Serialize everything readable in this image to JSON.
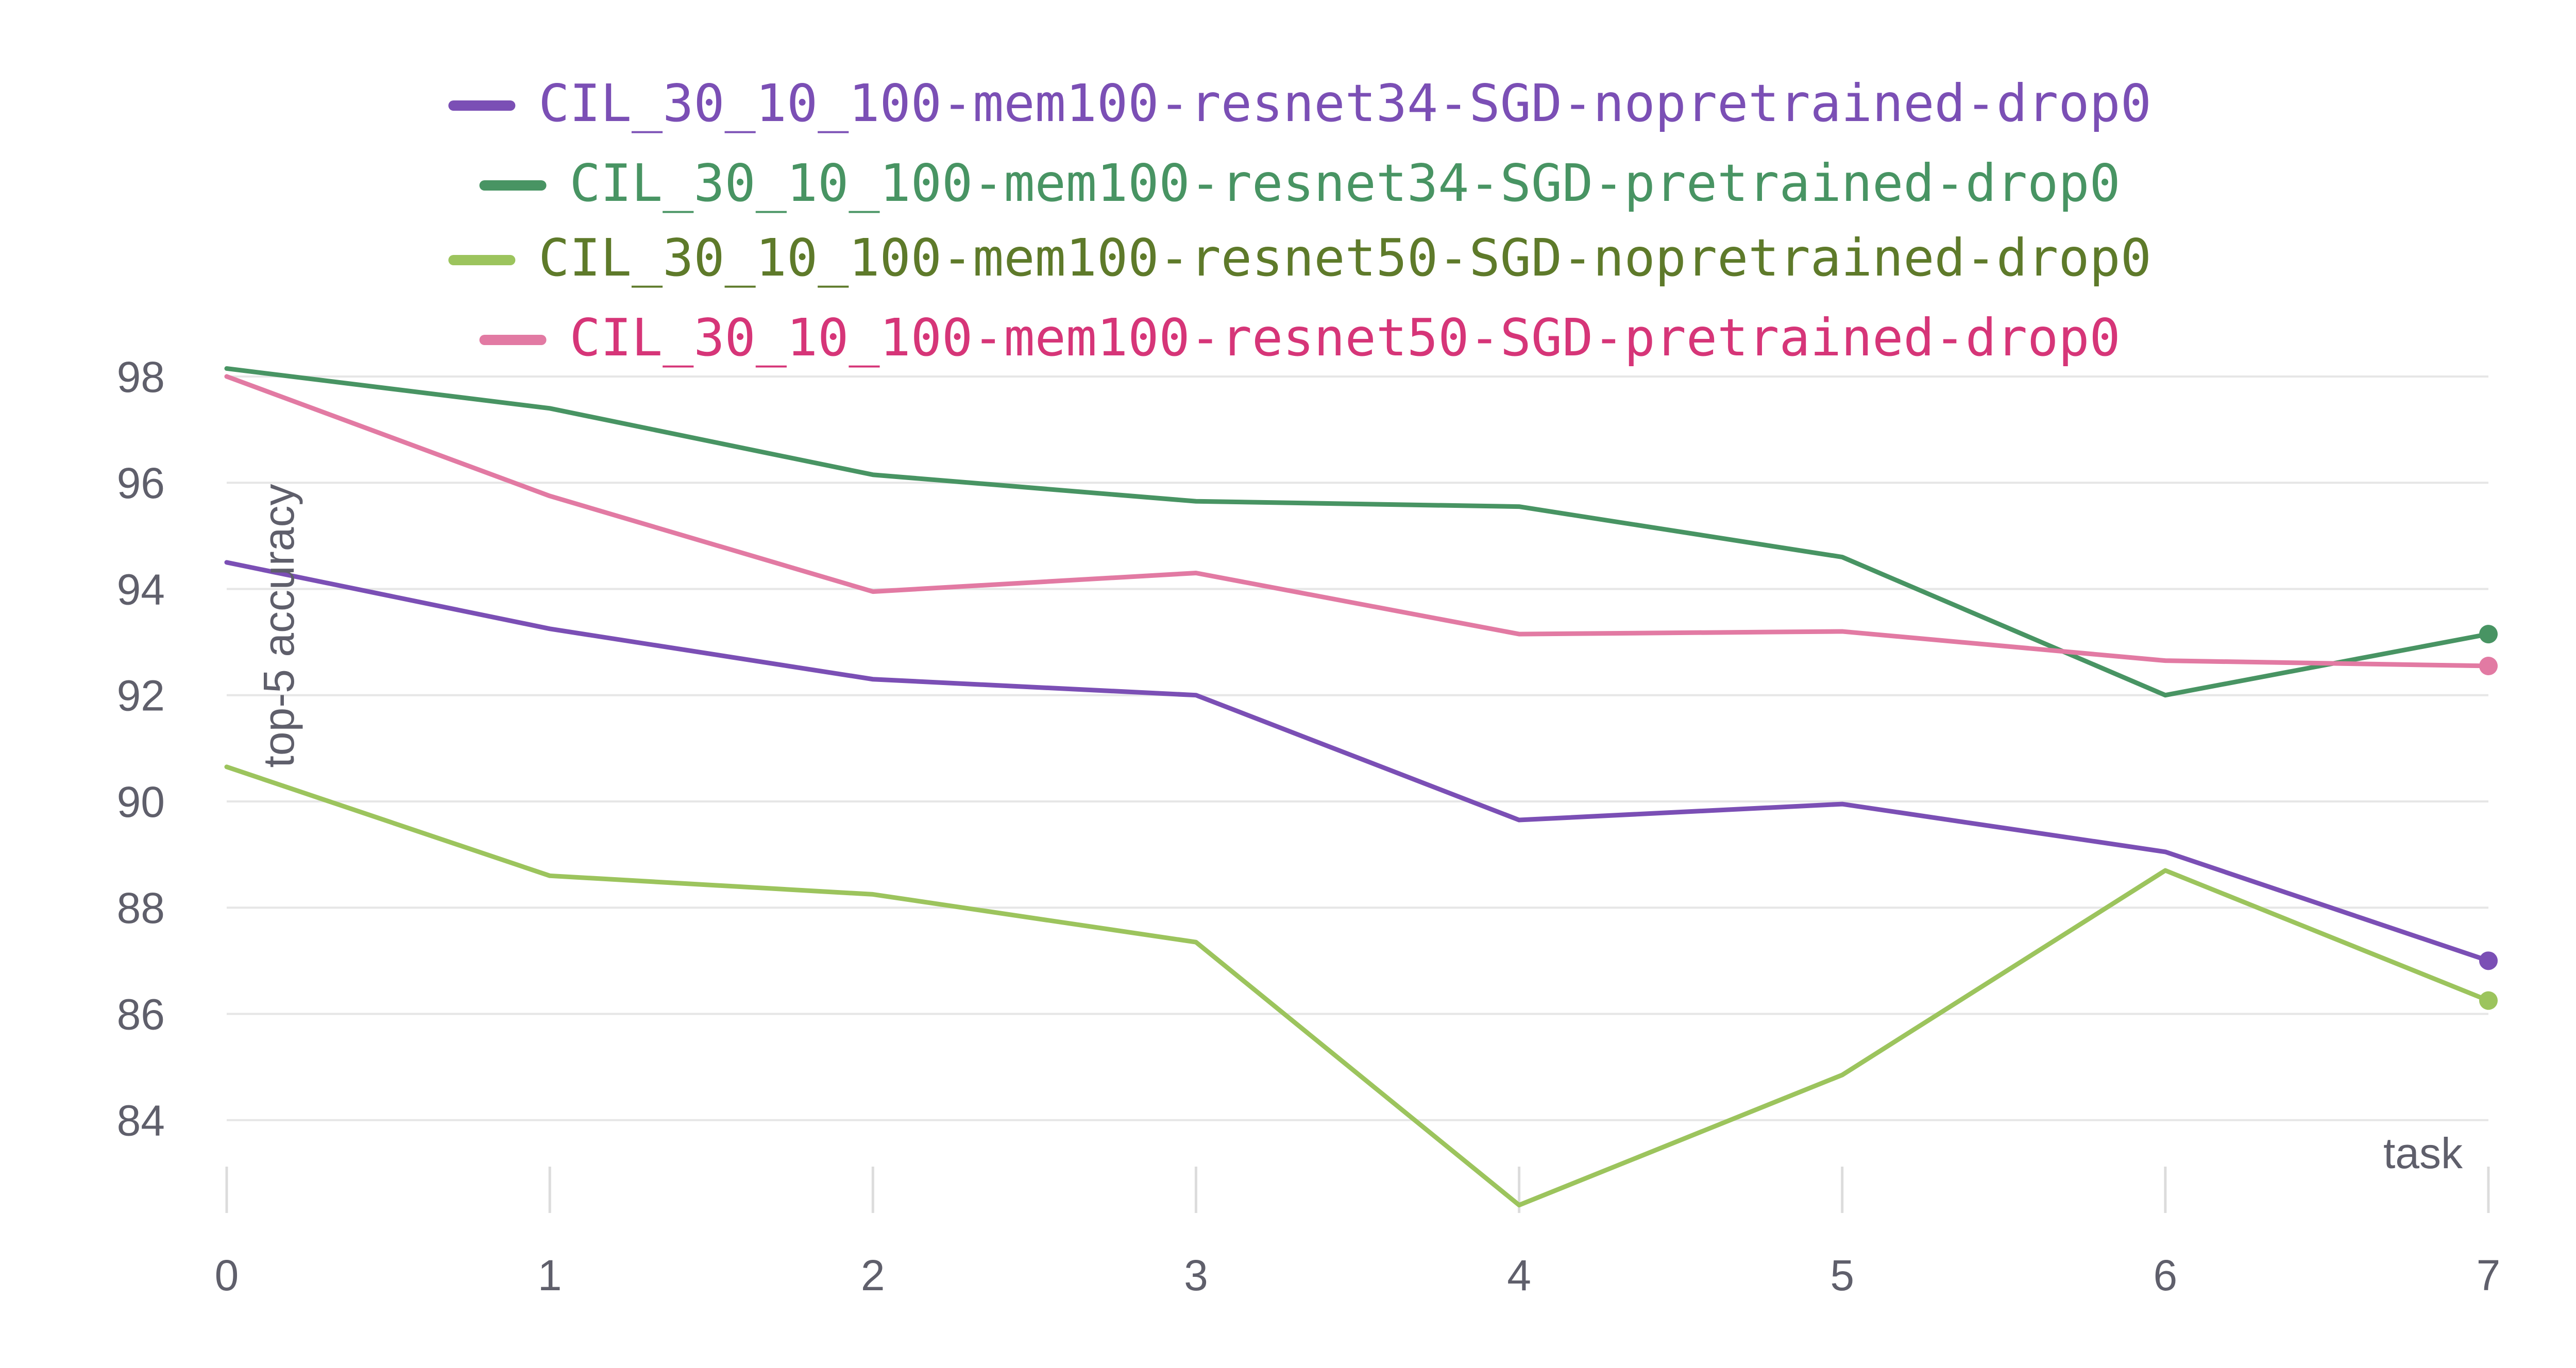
{
  "chart_data": {
    "type": "line",
    "title": "",
    "xlabel": "task",
    "ylabel": "top-5 accuracy",
    "x": [
      0,
      1,
      2,
      3,
      4,
      5,
      6,
      7
    ],
    "x_ticks": [
      "0",
      "1",
      "2",
      "3",
      "4",
      "5",
      "6",
      "7"
    ],
    "y_ticks": [
      "84",
      "86",
      "88",
      "90",
      "92",
      "94",
      "96",
      "98"
    ],
    "xlim": [
      0,
      7
    ],
    "ylim": [
      82.3,
      98.3
    ],
    "grid": "horizontal",
    "legend_position": "top",
    "end_markers": true,
    "series": [
      {
        "name": "CIL_30_10_100-mem100-resnet34-SGD-nopretrained-drop0",
        "color": "#7b4fb5",
        "values": [
          94.5,
          93.25,
          92.3,
          92.0,
          89.65,
          89.95,
          89.05,
          87.0
        ]
      },
      {
        "name": "CIL_30_10_100-mem100-resnet34-SGD-pretrained-drop0",
        "color": "#489463",
        "values": [
          98.15,
          97.4,
          96.15,
          95.65,
          95.55,
          94.6,
          92.0,
          93.15
        ]
      },
      {
        "name": "CIL_30_10_100-mem100-resnet50-SGD-nopretrained-drop0",
        "color": "#9cc45d",
        "text_color": "#5e7a2a",
        "values": [
          90.65,
          88.6,
          88.25,
          87.35,
          82.4,
          84.85,
          88.7,
          86.25
        ]
      },
      {
        "name": "CIL_30_10_100-mem100-resnet50-SGD-pretrained-drop0",
        "color": "#e27aa3",
        "text_color": "#d63578",
        "values": [
          98.0,
          95.75,
          93.95,
          94.3,
          93.15,
          93.2,
          92.65,
          92.55
        ]
      }
    ]
  }
}
